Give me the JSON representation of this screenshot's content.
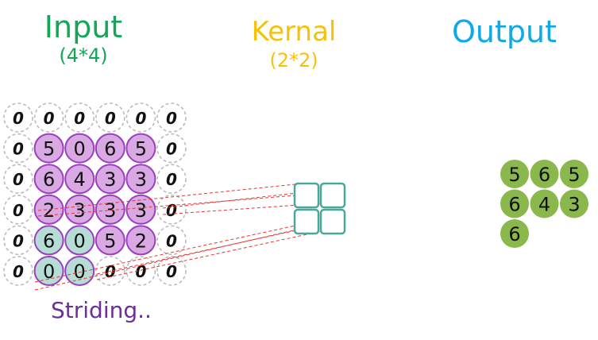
{
  "input": {
    "title": "Input",
    "size": "(4*4)",
    "grid": [
      [
        "0",
        "0",
        "0",
        "0",
        "0",
        "0"
      ],
      [
        "0",
        "5",
        "0",
        "6",
        "5",
        "0"
      ],
      [
        "0",
        "6",
        "4",
        "3",
        "3",
        "0"
      ],
      [
        "0",
        "2",
        "3",
        "3",
        "3",
        "0"
      ],
      [
        "0",
        "6",
        "0",
        "5",
        "2",
        "0"
      ],
      [
        "0",
        "0",
        "0",
        "0",
        "0",
        "0"
      ]
    ],
    "cell_types": [
      [
        "pad",
        "pad",
        "pad",
        "pad",
        "pad",
        "pad"
      ],
      [
        "pad",
        "data",
        "data",
        "data",
        "data",
        "pad"
      ],
      [
        "pad",
        "data",
        "data",
        "data",
        "data",
        "pad"
      ],
      [
        "pad",
        "data",
        "data",
        "data",
        "data",
        "pad"
      ],
      [
        "pad",
        "window",
        "window",
        "data",
        "data",
        "pad"
      ],
      [
        "pad",
        "window",
        "window",
        "pad",
        "pad",
        "pad"
      ]
    ]
  },
  "kernel": {
    "title": "Kernal",
    "size": "(2*2)"
  },
  "output": {
    "title": "Output",
    "rows": [
      [
        "5",
        "6",
        "5"
      ],
      [
        "6",
        "4",
        "3"
      ],
      [
        "6"
      ]
    ]
  },
  "caption": "Striding..",
  "colors": {
    "input_title": "#13a657",
    "kernel_title": "#f5c20b",
    "output_title": "#0fa9e8",
    "data_fill": "#d8a9e2",
    "data_stroke": "#9b3fbf",
    "window_fill": "#b5ddd6",
    "pad_stroke": "#bbbbbb",
    "kernel_stroke": "#4aa89a",
    "output_fill": "#8ab84c",
    "connector": "#e8352f",
    "caption": "#6a2f9b"
  }
}
